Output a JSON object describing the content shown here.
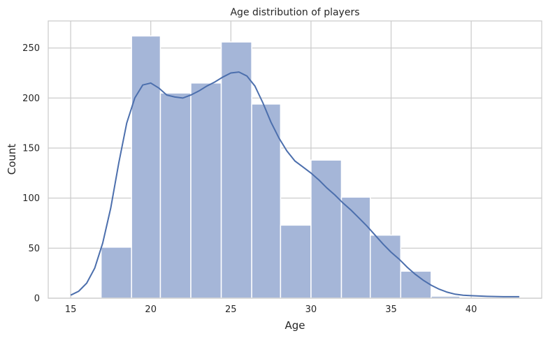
{
  "chart_data": {
    "type": "histogram",
    "title": "Age distribution of players",
    "xlabel": "Age",
    "ylabel": "Count",
    "xlim": [
      13.6,
      44.4
    ],
    "ylim": [
      0,
      277
    ],
    "x_ticks": [
      "15",
      "20",
      "25",
      "30",
      "35",
      "40"
    ],
    "y_ticks": [
      "0",
      "50",
      "100",
      "150",
      "200",
      "250"
    ],
    "x_tick_values": [
      15,
      20,
      25,
      30,
      35,
      40
    ],
    "y_tick_values": [
      0,
      50,
      100,
      150,
      200,
      250
    ],
    "grid": true,
    "bins": [
      {
        "start": 16.9,
        "end": 18.8,
        "count": 51
      },
      {
        "start": 18.8,
        "end": 20.6,
        "count": 262
      },
      {
        "start": 20.6,
        "end": 22.5,
        "count": 205
      },
      {
        "start": 22.5,
        "end": 24.4,
        "count": 215
      },
      {
        "start": 24.4,
        "end": 26.3,
        "count": 256
      },
      {
        "start": 26.3,
        "end": 28.1,
        "count": 194
      },
      {
        "start": 28.1,
        "end": 30.0,
        "count": 73
      },
      {
        "start": 30.0,
        "end": 31.9,
        "count": 138
      },
      {
        "start": 31.9,
        "end": 33.7,
        "count": 101
      },
      {
        "start": 33.7,
        "end": 35.6,
        "count": 63
      },
      {
        "start": 35.6,
        "end": 37.5,
        "count": 27
      },
      {
        "start": 37.5,
        "end": 39.3,
        "count": 2
      }
    ],
    "kde": {
      "x": [
        15,
        15.5,
        16,
        16.5,
        17,
        17.5,
        18,
        18.5,
        19,
        19.5,
        20,
        20.5,
        21,
        21.5,
        22,
        22.5,
        23,
        23.5,
        24,
        24.5,
        25,
        25.5,
        26,
        26.5,
        27,
        27.5,
        28,
        28.5,
        29,
        29.5,
        30,
        30.5,
        31,
        31.5,
        32,
        32.5,
        33,
        33.5,
        34,
        34.5,
        35,
        35.5,
        36,
        36.5,
        37,
        37.5,
        38,
        38.5,
        39,
        39.5,
        40,
        41,
        42,
        43
      ],
      "y": [
        3,
        7,
        15,
        30,
        55,
        90,
        135,
        175,
        200,
        213,
        215,
        210,
        203,
        201,
        200,
        203,
        207,
        212,
        216,
        221,
        225,
        226,
        222,
        212,
        195,
        176,
        160,
        147,
        137,
        131,
        125,
        118,
        110,
        103,
        95,
        88,
        80,
        72,
        63,
        54,
        46,
        39,
        31,
        24,
        18,
        13,
        9,
        6,
        4,
        3,
        2.5,
        1.8,
        1.5,
        1.5
      ]
    },
    "colors": {
      "bar_fill": "#a5b6d8",
      "bar_stroke": "#ffffff",
      "kde_line": "#4c6fad",
      "grid": "#cccccc",
      "frame": "#cccccc"
    }
  }
}
